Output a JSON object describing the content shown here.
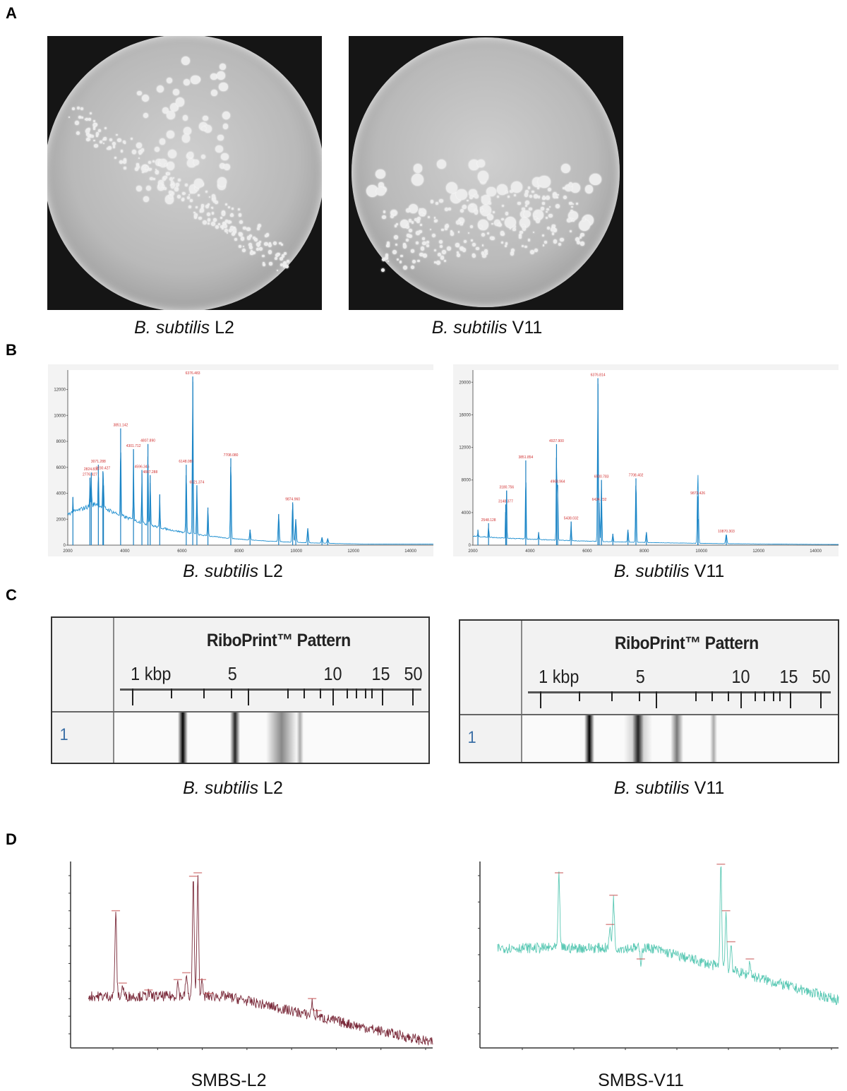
{
  "panels": {
    "a": "A",
    "b": "B",
    "c": "C",
    "d": "D"
  },
  "captions": {
    "a_left": {
      "species": "B. subtilis",
      "strain": "L2"
    },
    "a_right": {
      "species": "B. subtilis",
      "strain": "V11"
    },
    "b_left": {
      "species": "B. subtilis",
      "strain": "L2"
    },
    "b_right": {
      "species": "B. subtilis",
      "strain": "V11"
    },
    "c_left": {
      "species": "B. subtilis",
      "strain": "L2"
    },
    "c_right": {
      "species": "B. subtilis",
      "strain": "V11"
    },
    "d_left": "SMBS-L2",
    "d_right": "SMBS-V11"
  },
  "riboprint": {
    "title": "RiboPrint™ Pattern",
    "scale_labels": [
      "1 kbp",
      "5",
      "10",
      "15",
      "50"
    ],
    "lane_label": "1"
  },
  "chart_data": [
    {
      "id": "b_left",
      "type": "line",
      "line_color": "#1f8fd0",
      "label_color": "#d03030",
      "xlim": [
        2000,
        14800
      ],
      "ylim": [
        0,
        13500
      ],
      "xticks": [
        2000,
        4000,
        6000,
        8000,
        10000,
        12000,
        14000
      ],
      "yticks": [
        0,
        2000,
        4000,
        6000,
        8000,
        10000,
        12000
      ],
      "peaks": [
        {
          "x": 2180,
          "y": 3700
        },
        {
          "x": 2776,
          "y": 5200,
          "label": "2776.927"
        },
        {
          "x": 2824,
          "y": 5600,
          "label": "2824.839"
        },
        {
          "x": 3071,
          "y": 6200,
          "label": "3071.288"
        },
        {
          "x": 3230,
          "y": 5700,
          "label": "3230.427"
        },
        {
          "x": 3251,
          "y": 4600
        },
        {
          "x": 3851,
          "y": 9000,
          "label": "3851.142"
        },
        {
          "x": 4301,
          "y": 7400,
          "label": "4301.712"
        },
        {
          "x": 4596,
          "y": 5800,
          "label": "4596.346"
        },
        {
          "x": 4807,
          "y": 7800,
          "label": "4807.890"
        },
        {
          "x": 4887,
          "y": 5400,
          "label": "4887.288"
        },
        {
          "x": 5220,
          "y": 3900
        },
        {
          "x": 6148,
          "y": 6200,
          "label": "6148.085"
        },
        {
          "x": 6376,
          "y": 13000,
          "label": "6376.483"
        },
        {
          "x": 6521,
          "y": 4600,
          "label": "6521.374"
        },
        {
          "x": 6907,
          "y": 2900
        },
        {
          "x": 7708,
          "y": 6700,
          "label": "7708.080"
        },
        {
          "x": 8382,
          "y": 1200
        },
        {
          "x": 9384,
          "y": 2400
        },
        {
          "x": 9874,
          "y": 3300,
          "label": "9874.960"
        },
        {
          "x": 9983,
          "y": 2000
        },
        {
          "x": 10404,
          "y": 1300
        },
        {
          "x": 10900,
          "y": 600
        },
        {
          "x": 11100,
          "y": 500
        }
      ]
    },
    {
      "id": "b_right",
      "type": "line",
      "line_color": "#1f8fd0",
      "label_color": "#d03030",
      "xlim": [
        2000,
        14800
      ],
      "ylim": [
        0,
        21500
      ],
      "xticks": [
        2000,
        4000,
        6000,
        8000,
        10000,
        12000,
        14000
      ],
      "yticks": [
        0,
        4000,
        8000,
        12000,
        16000,
        20000
      ],
      "peaks": [
        {
          "x": 2175,
          "y": 1900
        },
        {
          "x": 2548,
          "y": 2700,
          "label": "2548.128"
        },
        {
          "x": 3148,
          "y": 5000,
          "label": "3148.377"
        },
        {
          "x": 3180,
          "y": 6700,
          "label": "3180.756"
        },
        {
          "x": 3851,
          "y": 10400,
          "label": "3851.854"
        },
        {
          "x": 4300,
          "y": 1600
        },
        {
          "x": 4927,
          "y": 12400,
          "label": "4927.900"
        },
        {
          "x": 4968,
          "y": 7400,
          "label": "4968.964"
        },
        {
          "x": 5438,
          "y": 2900,
          "label": "5438.032"
        },
        {
          "x": 6376,
          "y": 20500,
          "label": "6376.814"
        },
        {
          "x": 6424,
          "y": 5200,
          "label": "6424.232"
        },
        {
          "x": 6500,
          "y": 8000,
          "label": "6500.783"
        },
        {
          "x": 6900,
          "y": 1400
        },
        {
          "x": 7428,
          "y": 1900
        },
        {
          "x": 7708,
          "y": 8200,
          "label": "7708.402"
        },
        {
          "x": 8074,
          "y": 1600
        },
        {
          "x": 9873,
          "y": 6000,
          "label": "9873.426"
        },
        {
          "x": 9881,
          "y": 3200
        },
        {
          "x": 10870,
          "y": 1300,
          "label": "10870.303"
        }
      ]
    },
    {
      "id": "d_left",
      "type": "line",
      "line_color": "#7a2a3a",
      "label_color": "#c04040",
      "peaks": [
        {
          "x": 0.08,
          "y": 0.78
        },
        {
          "x": 0.1,
          "y": 0.36
        },
        {
          "x": 0.175,
          "y": 0.32
        },
        {
          "x": 0.26,
          "y": 0.38
        },
        {
          "x": 0.285,
          "y": 0.42
        },
        {
          "x": 0.305,
          "y": 0.98
        },
        {
          "x": 0.318,
          "y": 1.0
        },
        {
          "x": 0.33,
          "y": 0.38
        },
        {
          "x": 0.35,
          "y": 0.3
        },
        {
          "x": 0.65,
          "y": 0.27
        },
        {
          "x": 0.665,
          "y": 0.2
        }
      ]
    },
    {
      "id": "d_right",
      "type": "line",
      "line_color": "#5cc9b5",
      "label_color": "#c04040",
      "peaks": [
        {
          "x": 0.18,
          "y": 1.0
        },
        {
          "x": 0.33,
          "y": 0.7
        },
        {
          "x": 0.34,
          "y": 0.87
        },
        {
          "x": 0.42,
          "y": 0.5
        },
        {
          "x": 0.655,
          "y": 1.05
        },
        {
          "x": 0.67,
          "y": 0.78
        },
        {
          "x": 0.685,
          "y": 0.6
        },
        {
          "x": 0.74,
          "y": 0.5
        }
      ]
    }
  ]
}
